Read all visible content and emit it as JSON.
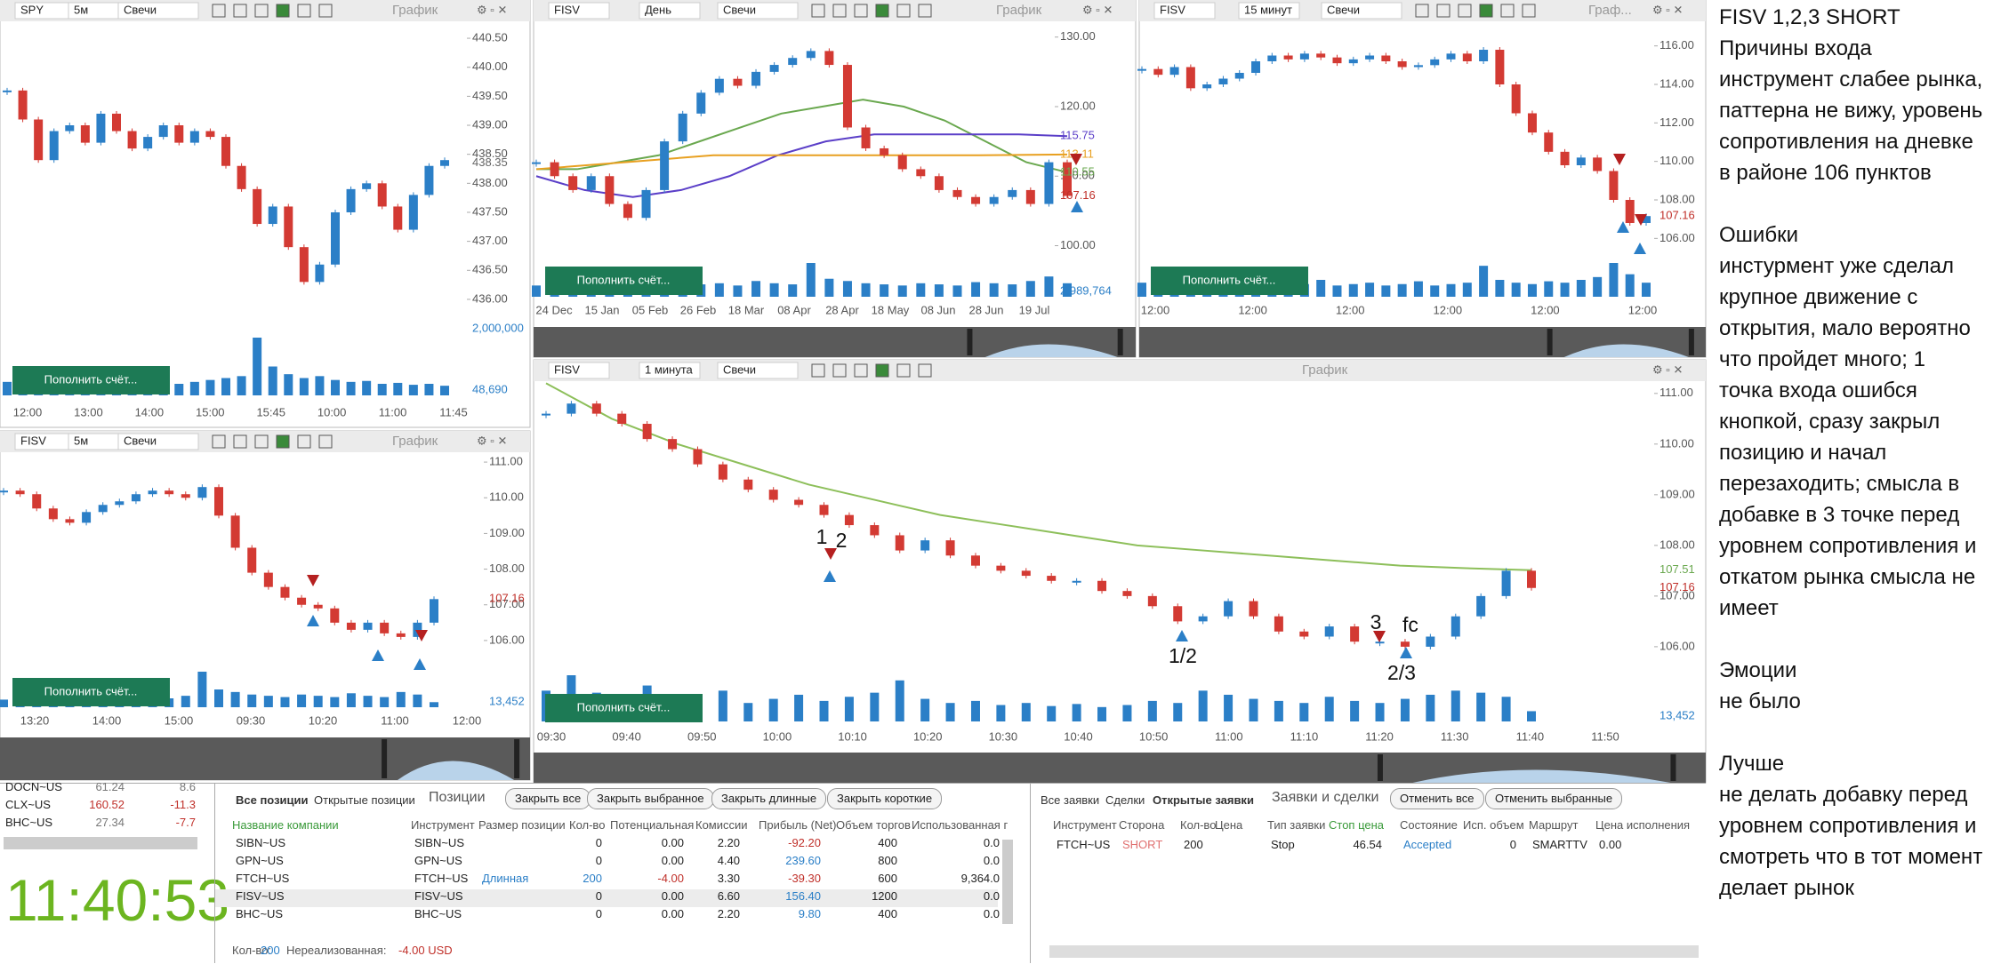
{
  "chart_data": [
    {
      "type": "candlestick",
      "symbol": "SPY",
      "interval": "5м",
      "style": "Свечи",
      "label": "График",
      "ylim": [
        435.8,
        440.7
      ],
      "yticks": [
        {
          "value": 440.5,
          "label": "440.50"
        },
        {
          "value": 440,
          "label": "440.00"
        },
        {
          "value": 439.5,
          "label": "439.50"
        },
        {
          "value": 439,
          "label": "439.00"
        },
        {
          "value": 438.5,
          "label": "438.50"
        },
        {
          "value": 438,
          "label": "438.00"
        },
        {
          "value": 437.5,
          "label": "437.50"
        },
        {
          "value": 437,
          "label": "437.00"
        },
        {
          "value": 436.5,
          "label": "436.50"
        },
        {
          "value": 436,
          "label": "436.00"
        }
      ],
      "xticks": [
        "12:00",
        "13:00",
        "14:00",
        "15:00",
        "15:45",
        "10:00",
        "11:00",
        "11:45"
      ],
      "closes": [
        439.6,
        439.1,
        438.4,
        438.9,
        439.0,
        438.7,
        439.2,
        438.9,
        438.6,
        438.8,
        439.0,
        438.7,
        438.9,
        438.8,
        438.3,
        437.9,
        437.3,
        437.6,
        436.9,
        436.3,
        436.6,
        437.5,
        437.9,
        438.0,
        437.6,
        437.2,
        437.8,
        438.3,
        438.4
      ],
      "volumes": [
        14,
        12,
        11,
        13,
        10,
        12,
        11,
        14,
        12,
        10,
        13,
        12,
        14,
        16,
        18,
        20,
        60,
        30,
        22,
        18,
        20,
        16,
        14,
        15,
        12,
        13,
        11,
        12,
        10
      ],
      "volume_labels": [
        "2,000,000",
        "48,690"
      ],
      "price_labels": [
        {
          "value": 438.35,
          "color": "#666666"
        }
      ],
      "indicators": [],
      "deposit_button": "Пополнить счёт..."
    },
    {
      "type": "candlestick",
      "symbol": "FISV",
      "interval": "День",
      "style": "Свечи",
      "label": "График",
      "ylim": [
        97,
        131.5
      ],
      "yticks": [
        {
          "value": 130,
          "label": "130.00"
        },
        {
          "value": 120,
          "label": "120.00"
        },
        {
          "value": 110,
          "label": "110.00"
        },
        {
          "value": 100,
          "label": "100.00"
        }
      ],
      "xticks": [
        "24 Dec",
        "15 Jan",
        "05 Feb",
        "26 Feb",
        "18 Mar",
        "08 Apr",
        "28 Apr",
        "18 May",
        "08 Jun",
        "28 Jun",
        "19 Jul"
      ],
      "closes": [
        112,
        110,
        108,
        110,
        106,
        104,
        108,
        115,
        119,
        122,
        124,
        123,
        125,
        126,
        127,
        128,
        126,
        117,
        114,
        113,
        111,
        110,
        108,
        107,
        106,
        107,
        108,
        106,
        112,
        107.16
      ],
      "volumes": [
        10,
        12,
        9,
        11,
        14,
        12,
        10,
        13,
        15,
        11,
        12,
        10,
        14,
        12,
        11,
        30,
        16,
        14,
        12,
        11,
        10,
        12,
        11,
        10,
        13,
        12,
        11,
        14,
        18,
        12
      ],
      "volume_labels": [
        "2,989,764"
      ],
      "price_labels": [
        {
          "value": 115.75,
          "color": "#5b3fc8"
        },
        {
          "value": 113.11,
          "color": "#e8a020"
        },
        {
          "value": 110.55,
          "color": "#6aa84f"
        },
        {
          "value": 107.16,
          "color": "#c0302a"
        }
      ],
      "indicators": [
        {
          "color": "#6aa84f",
          "values": [
            111,
            111,
            112,
            113,
            115,
            117,
            119,
            120,
            121,
            120,
            118,
            115,
            112,
            110.55
          ]
        },
        {
          "color": "#5b3fc8",
          "values": [
            110,
            108,
            107,
            108,
            110,
            113,
            115,
            116,
            116,
            116,
            116,
            115.75
          ]
        },
        {
          "color": "#e8a020",
          "values": [
            111,
            112,
            113,
            113,
            113,
            113,
            113.11
          ]
        }
      ],
      "deposit_button": "Пополнить счёт..."
    },
    {
      "type": "candlestick",
      "symbol": "FISV",
      "interval": "15 минут",
      "style": "Свечи",
      "label": "Граф...",
      "ylim": [
        105,
        117
      ],
      "yticks": [
        {
          "value": 116,
          "label": "116.00"
        },
        {
          "value": 114,
          "label": "114.00"
        },
        {
          "value": 112,
          "label": "112.00"
        },
        {
          "value": 110,
          "label": "110.00"
        },
        {
          "value": 108,
          "label": "108.00"
        },
        {
          "value": 106,
          "label": "106.00"
        }
      ],
      "xticks": [
        "12:00",
        "12:00",
        "12:00",
        "12:00",
        "12:00",
        "12:00"
      ],
      "closes": [
        114.8,
        114.5,
        114.9,
        113.8,
        114.0,
        114.3,
        114.6,
        115.2,
        115.5,
        115.3,
        115.6,
        115.4,
        115.1,
        115.3,
        115.5,
        115.2,
        114.9,
        115.0,
        115.3,
        115.6,
        115.2,
        115.8,
        114.0,
        112.5,
        111.5,
        110.5,
        109.8,
        110.2,
        109.5,
        108.0,
        106.8,
        107.16
      ],
      "volumes": [
        10,
        8,
        9,
        12,
        8,
        7,
        9,
        11,
        10,
        8,
        9,
        12,
        8,
        9,
        10,
        8,
        9,
        11,
        8,
        9,
        10,
        22,
        12,
        10,
        9,
        11,
        10,
        12,
        14,
        24,
        16,
        10
      ],
      "volume_labels": [],
      "price_labels": [
        {
          "value": 107.16,
          "color": "#c0302a"
        }
      ],
      "indicators": [],
      "deposit_button": "Пополнить счёт..."
    },
    {
      "type": "candlestick",
      "symbol": "FISV",
      "interval": "5м",
      "style": "Свечи",
      "label": "График",
      "ylim": [
        105.4,
        111.5
      ],
      "yticks": [
        {
          "value": 111,
          "label": "111.00"
        },
        {
          "value": 110,
          "label": "110.00"
        },
        {
          "value": 109,
          "label": "109.00"
        },
        {
          "value": 108,
          "label": "108.00"
        },
        {
          "value": 107,
          "label": "107.00"
        },
        {
          "value": 106,
          "label": "106.00"
        }
      ],
      "xticks": [
        "13:20",
        "14:00",
        "15:00",
        "09:30",
        "10:20",
        "11:00",
        "12:00"
      ],
      "closes": [
        110.2,
        110.1,
        109.7,
        109.4,
        109.3,
        109.6,
        109.8,
        109.9,
        110.1,
        110.2,
        110.1,
        110.0,
        110.3,
        109.5,
        108.6,
        107.9,
        107.5,
        107.2,
        107.0,
        106.9,
        106.5,
        106.3,
        106.5,
        106.2,
        106.1,
        106.5,
        107.16
      ],
      "volumes": [
        6,
        5,
        7,
        6,
        5,
        6,
        7,
        5,
        6,
        8,
        7,
        9,
        28,
        14,
        12,
        10,
        9,
        8,
        10,
        9,
        8,
        11,
        9,
        8,
        12,
        10,
        4
      ],
      "volume_labels": [
        "13,452"
      ],
      "price_labels": [
        {
          "value": 107.16,
          "color": "#c0302a"
        }
      ],
      "indicators": [],
      "deposit_button": "Пополнить счёт..."
    },
    {
      "type": "candlestick",
      "symbol": "FISV",
      "interval": "1 минута",
      "style": "Свечи",
      "label": "График",
      "ylim": [
        105.7,
        111.4
      ],
      "yticks": [
        {
          "value": 111,
          "label": "111.00"
        },
        {
          "value": 110,
          "label": "110.00"
        },
        {
          "value": 109,
          "label": "109.00"
        },
        {
          "value": 108,
          "label": "108.00"
        },
        {
          "value": 107,
          "label": "107.00"
        },
        {
          "value": 106,
          "label": "106.00"
        }
      ],
      "xticks": [
        "09:30",
        "09:40",
        "09:50",
        "10:00",
        "10:10",
        "10:20",
        "10:30",
        "10:40",
        "10:50",
        "11:00",
        "11:10",
        "11:20",
        "11:30",
        "11:40",
        "11:50"
      ],
      "closes": [
        110.6,
        110.8,
        110.6,
        110.4,
        110.1,
        109.9,
        109.6,
        109.3,
        109.1,
        108.9,
        108.8,
        108.6,
        108.4,
        108.2,
        107.9,
        108.1,
        107.8,
        107.6,
        107.5,
        107.4,
        107.3,
        107.3,
        107.1,
        107.0,
        106.8,
        106.5,
        106.6,
        106.9,
        106.6,
        106.3,
        106.2,
        106.4,
        106.1,
        106.1,
        106.0,
        106.2,
        106.6,
        107.0,
        107.5,
        107.16
      ],
      "volumes": [
        30,
        45,
        28,
        22,
        35,
        20,
        25,
        30,
        18,
        22,
        26,
        20,
        24,
        28,
        40,
        22,
        18,
        20,
        16,
        18,
        15,
        17,
        14,
        16,
        20,
        18,
        30,
        26,
        22,
        20,
        18,
        24,
        20,
        18,
        22,
        26,
        30,
        28,
        24,
        10
      ],
      "volume_labels": [
        "13,452"
      ],
      "price_labels": [
        {
          "value": 107.51,
          "color": "#6aa84f"
        },
        {
          "value": 107.16,
          "color": "#c0302a"
        }
      ],
      "indicators": [
        {
          "color": "#8dbf5a",
          "values": [
            111.2,
            110.5,
            110.0,
            109.6,
            109.2,
            108.9,
            108.6,
            108.4,
            108.2,
            108.0,
            107.9,
            107.8,
            107.7,
            107.6,
            107.55,
            107.51
          ]
        }
      ],
      "annotations": [
        "1",
        "2",
        "1/2",
        "3",
        "fc",
        "2/3"
      ],
      "deposit_button": "Пополнить счёт..."
    }
  ],
  "watchlist": [
    [
      "DOCN~US",
      "61.24",
      "8.6"
    ],
    [
      "CLX~US",
      "160.52",
      "-11.3"
    ],
    [
      "BHC~US",
      "27.34",
      "-7.7"
    ]
  ],
  "clock": "11:40:53",
  "positions": {
    "tabs": [
      "Все позиции",
      "Открытые позиции"
    ],
    "title": "Позиции",
    "buttons": [
      "Закрыть все",
      "Закрыть выбранное",
      "Закрыть длинные",
      "Закрыть короткие"
    ],
    "columns": [
      "Название компании",
      "Инструмент",
      "Размер позиции",
      "Кол-во",
      "Потенциальная",
      "Комиссии",
      "Прибыль (Net)",
      "Объем торгов",
      "Использованная г"
    ],
    "rows": [
      [
        "SIBN~US",
        "SIBN~US",
        null,
        0,
        "0.00",
        "2.20",
        "-92.20",
        400,
        "0.0"
      ],
      [
        "GPN~US",
        "GPN~US",
        null,
        0,
        "0.00",
        "4.40",
        "239.60",
        800,
        "0.0"
      ],
      [
        "FTCH~US",
        "FTCH~US",
        "Длинная",
        200,
        "-4.00",
        "3.30",
        "-39.30",
        600,
        "9,364.0"
      ],
      [
        "FISV~US",
        "FISV~US",
        null,
        0,
        "0.00",
        "6.60",
        "156.40",
        1200,
        "0.0"
      ],
      [
        "BHC~US",
        "BHC~US",
        null,
        0,
        "0.00",
        "2.20",
        "9.80",
        400,
        "0.0"
      ]
    ],
    "footer": [
      "Кол-во:",
      "200",
      "Нереализованная:",
      "-4.00 USD"
    ]
  },
  "orders": {
    "tabs": [
      "Все заявки",
      "Сделки",
      "Открытые заявки"
    ],
    "title": "Заявки и сделки",
    "buttons": [
      "Отменить все",
      "Отменить выбранные"
    ],
    "columns": [
      "Инструмент",
      "Сторона",
      "Кол-во",
      "Цена",
      "Тип заявки",
      "Стоп цена",
      "Состояние",
      "Исп. объем",
      "Маршрут",
      "Цена исполнения"
    ],
    "rows": [
      [
        "FTCH~US",
        "SHORT",
        200,
        null,
        "Stop",
        "46.54",
        "Accepted",
        0,
        "SMARTTV",
        "0.00"
      ]
    ]
  },
  "notes": [
    [
      "FISV 1,2,3 SHORT",
      "Причины входа",
      "инструмент слабее рынка,",
      "паттерна не вижу, уровень",
      "сопротивления на дневке",
      "в районе 106 пунктов"
    ],
    [
      "Ошибки",
      "инстурмент уже сделал",
      "крупное движение с",
      "открытия, мало вероятно",
      "что пройдет много; 1",
      "точка входа ошибся",
      "кнопкой, сразу закрыл",
      "позицию и начал",
      "перезаходить; смысла в",
      "добавке в 3 точке перед",
      "уровнем сопротивления и",
      "откатом рынка смысла не",
      "имеет"
    ],
    [
      "Эмоции",
      "не было"
    ],
    [
      "Лучше",
      "не делать добавку перед",
      "уровнем сопротивления и",
      "смотреть что в тот момент",
      "делает рынок"
    ]
  ]
}
